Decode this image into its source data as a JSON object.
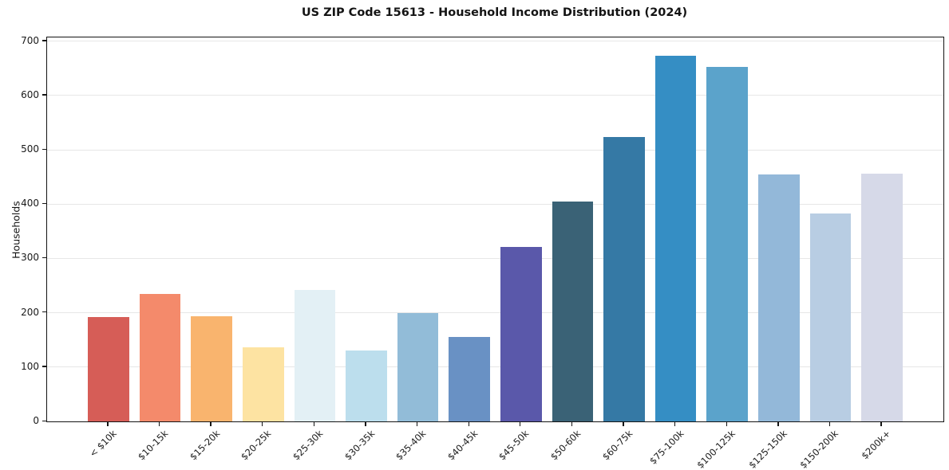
{
  "chart_data": {
    "type": "bar",
    "title": "US ZIP Code 15613 - Household Income Distribution (2024)",
    "xlabel": "",
    "ylabel": "Households",
    "categories": [
      "< $10k",
      "$10-15k",
      "$15-20k",
      "$20-25k",
      "$25-30k",
      "$30-35k",
      "$35-40k",
      "$40-45k",
      "$45-50k",
      "$50-60k",
      "$60-75k",
      "$75-100k",
      "$100-125k",
      "$125-150k",
      "$150-200k",
      "$200k+"
    ],
    "values": [
      192,
      234,
      193,
      136,
      242,
      131,
      200,
      155,
      321,
      405,
      523,
      674,
      653,
      454,
      383,
      456
    ],
    "bar_colors": [
      "#d65d57",
      "#f48a6b",
      "#f9b46e",
      "#fde3a2",
      "#e3f0f5",
      "#bcdeed",
      "#92bcd8",
      "#6991c4",
      "#5a58aa",
      "#3a6276",
      "#3579a5",
      "#358ec4",
      "#5ba3cb",
      "#93b8d9",
      "#b8cde3",
      "#d6d9e8"
    ],
    "yticks": [
      0,
      100,
      200,
      300,
      400,
      500,
      600,
      700
    ],
    "ylim": [
      0,
      707
    ],
    "grid": "horizontal-only",
    "legend": "none",
    "grid_color": "#e7e7e7",
    "axis_color": "#141414",
    "background_color": "#ffffff",
    "xtick_rotation_deg": 45
  }
}
